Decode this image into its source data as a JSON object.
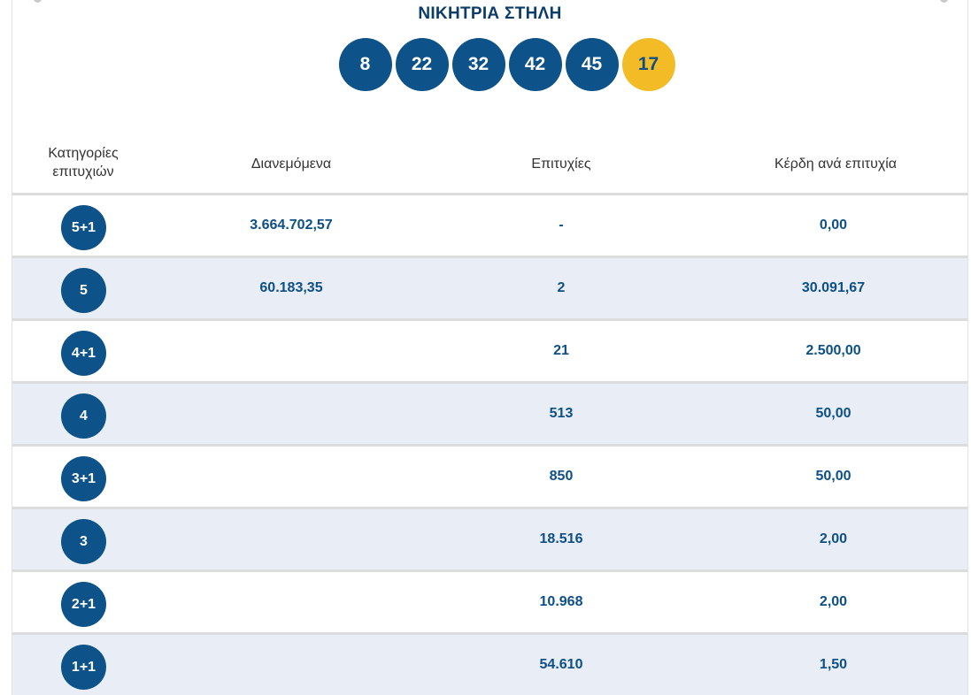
{
  "title": "ΝΙΚΗΤΡΙΑ ΣΤΗΛΗ",
  "winning_numbers": [
    "8",
    "22",
    "32",
    "42",
    "45"
  ],
  "bonus_number": "17",
  "colors": {
    "ball": "#0d5289",
    "bonus_ball": "#f3bb26",
    "text_accent": "#0d4f87",
    "alt_row": "#e9eef6"
  },
  "table": {
    "headers": {
      "categories_line1": "Κατηγορίες",
      "categories_line2": "επιτυχιών",
      "distributed": "Διανεμόμενα",
      "winners": "Επιτυχίες",
      "prize_per_winner": "Κέρδη ανά επιτυχία"
    },
    "rows": [
      {
        "category": "5+1",
        "distributed": "3.664.702,57",
        "winners": "-",
        "prize": "0,00"
      },
      {
        "category": "5",
        "distributed": "60.183,35",
        "winners": "2",
        "prize": "30.091,67"
      },
      {
        "category": "4+1",
        "distributed": "",
        "winners": "21",
        "prize": "2.500,00"
      },
      {
        "category": "4",
        "distributed": "",
        "winners": "513",
        "prize": "50,00"
      },
      {
        "category": "3+1",
        "distributed": "",
        "winners": "850",
        "prize": "50,00"
      },
      {
        "category": "3",
        "distributed": "",
        "winners": "18.516",
        "prize": "2,00"
      },
      {
        "category": "2+1",
        "distributed": "",
        "winners": "10.968",
        "prize": "2,00"
      },
      {
        "category": "1+1",
        "distributed": "",
        "winners": "54.610",
        "prize": "1,50"
      }
    ]
  }
}
